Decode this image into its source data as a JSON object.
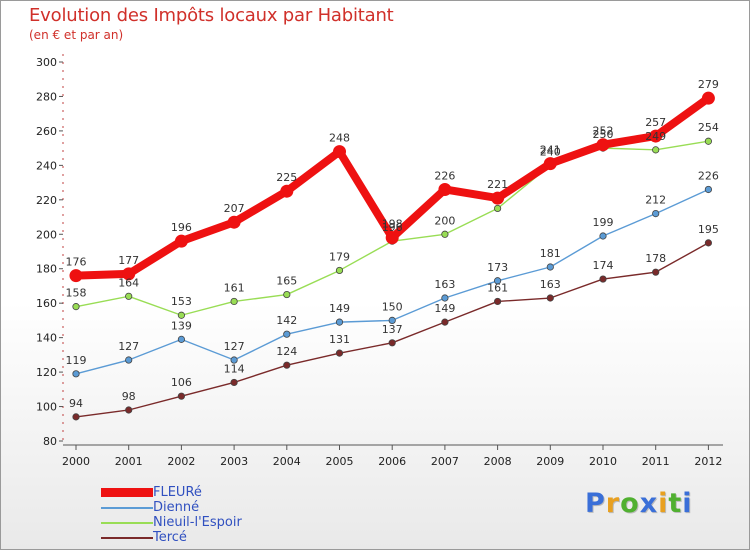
{
  "title": "Evolution des Impôts locaux par Habitant",
  "subtitle": "(en € et par an)",
  "logo": {
    "text": "Proxiti",
    "colors": [
      "#3a6fd8",
      "#e8a020",
      "#50b030",
      "#3a6fd8",
      "#e8a020",
      "#50b030",
      "#3a6fd8"
    ]
  },
  "chart_data": {
    "type": "line",
    "title": "Evolution des Impôts locaux par Habitant",
    "ylabel": "(en € et par an)",
    "x": [
      "2000",
      "2001",
      "2002",
      "2003",
      "2004",
      "2005",
      "2006",
      "2007",
      "2008",
      "2009",
      "2010",
      "2011",
      "2012"
    ],
    "ylim": [
      80,
      300
    ],
    "yticks": [
      80,
      100,
      120,
      140,
      160,
      180,
      200,
      220,
      240,
      260,
      280,
      300
    ],
    "grid": false,
    "series": [
      {
        "name": "FLEURé",
        "color": "#ee1111",
        "values": [
          176,
          177,
          196,
          207,
          225,
          248,
          198,
          226,
          221,
          241,
          252,
          257,
          279
        ]
      },
      {
        "name": "Dienné",
        "color": "#5b9bd5",
        "values": [
          119,
          127,
          139,
          127,
          142,
          149,
          150,
          163,
          173,
          181,
          199,
          212,
          226
        ]
      },
      {
        "name": "Nieuil-l'Espoir",
        "color": "#99dd55",
        "values": [
          158,
          164,
          153,
          161,
          165,
          179,
          196,
          200,
          215,
          240,
          250,
          249,
          254
        ]
      },
      {
        "name": "Tercé",
        "color": "#7a2a2a",
        "values": [
          94,
          98,
          106,
          114,
          124,
          131,
          137,
          149,
          161,
          163,
          174,
          178,
          195
        ]
      }
    ],
    "labels": [
      [
        "176",
        "177",
        "196",
        "207",
        "225",
        "248",
        "198",
        "226",
        "221",
        "241",
        "252",
        "257",
        "279"
      ],
      [
        "119",
        "127",
        "139",
        "127",
        "142",
        "149",
        "150",
        "163",
        "173",
        "181",
        "199",
        "212",
        "226"
      ],
      [
        "158",
        "164",
        "153",
        "161",
        "165",
        "179",
        "196",
        "200",
        "",
        "240",
        "250",
        "249",
        "254"
      ],
      [
        "94",
        "98",
        "106",
        "114",
        "124",
        "131",
        "137",
        "149",
        "161",
        "163",
        "174",
        "178",
        "195"
      ]
    ]
  }
}
